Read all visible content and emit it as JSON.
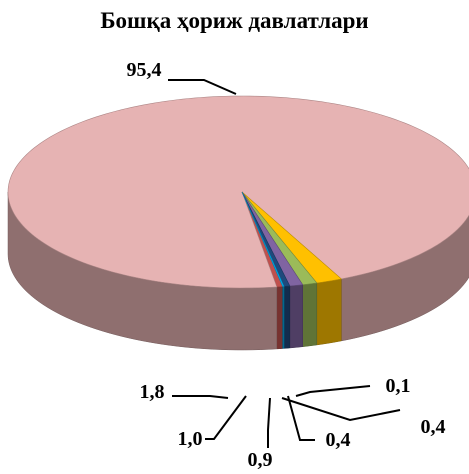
{
  "chart_data": {
    "type": "pie",
    "style": "3d",
    "title": "Бошқа ҳориж давлатлари",
    "slices": [
      {
        "label": "0,4",
        "value": 0.4,
        "color": "#c0504d"
      },
      {
        "label": "95,4",
        "value": 95.4,
        "color": "#e6b3b3"
      },
      {
        "label": "1,8",
        "value": 1.8,
        "color": "#ffc000"
      },
      {
        "label": "1,0",
        "value": 1.0,
        "color": "#9bbb59"
      },
      {
        "label": "0,9",
        "value": 0.9,
        "color": "#8064a2"
      },
      {
        "label": "0,4",
        "value": 0.4,
        "color": "#1f497d"
      },
      {
        "label": "0,1",
        "value": 0.1,
        "color": "#00b0f0"
      }
    ],
    "legend": "none"
  }
}
